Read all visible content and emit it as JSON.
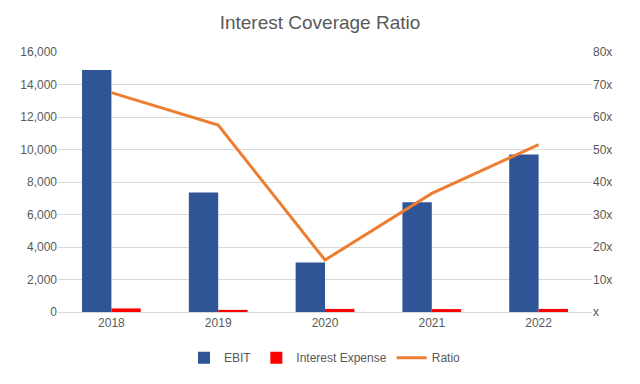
{
  "chart_data": {
    "type": "bar",
    "title": "Interest Coverage Ratio",
    "categories": [
      "2018",
      "2019",
      "2020",
      "2021",
      "2022"
    ],
    "series": [
      {
        "name": "EBIT",
        "type": "bar",
        "color": "#2f5597",
        "values": [
          14900,
          7350,
          3050,
          6750,
          9700
        ]
      },
      {
        "name": "Interest Expense",
        "type": "bar",
        "color": "#ff0000",
        "values": [
          220,
          130,
          190,
          180,
          190
        ]
      },
      {
        "name": "Ratio",
        "type": "line",
        "axis": "y2",
        "color": "#ed7d31",
        "line_style": "solid",
        "values": [
          67.5,
          57.5,
          16,
          36.5,
          51.5
        ]
      }
    ],
    "ylim": [
      0,
      16000
    ],
    "yticks": [
      0,
      {
        "value": 2000,
        "label": "2,000"
      },
      {
        "value": 4000,
        "label": "4,000"
      },
      {
        "value": 6000,
        "label": "6,000"
      },
      {
        "value": 8000,
        "label": "8,000"
      },
      {
        "value": 10000,
        "label": "10,000"
      },
      {
        "value": 12000,
        "label": "12,000"
      },
      {
        "value": 14000,
        "label": "14,000"
      },
      {
        "value": 16000,
        "label": "16,000"
      }
    ],
    "y2lim": [
      0,
      80
    ],
    "y2ticks": [
      {
        "value": 0,
        "label": "x"
      },
      {
        "value": 10,
        "label": "10x"
      },
      {
        "value": 20,
        "label": "20x"
      },
      {
        "value": 30,
        "label": "30x"
      },
      {
        "value": 40,
        "label": "40x"
      },
      {
        "value": 50,
        "label": "50x"
      },
      {
        "value": 60,
        "label": "60x"
      },
      {
        "value": 70,
        "label": "70x"
      },
      {
        "value": 80,
        "label": "80x"
      }
    ],
    "grid": true,
    "legend": "bottom"
  }
}
